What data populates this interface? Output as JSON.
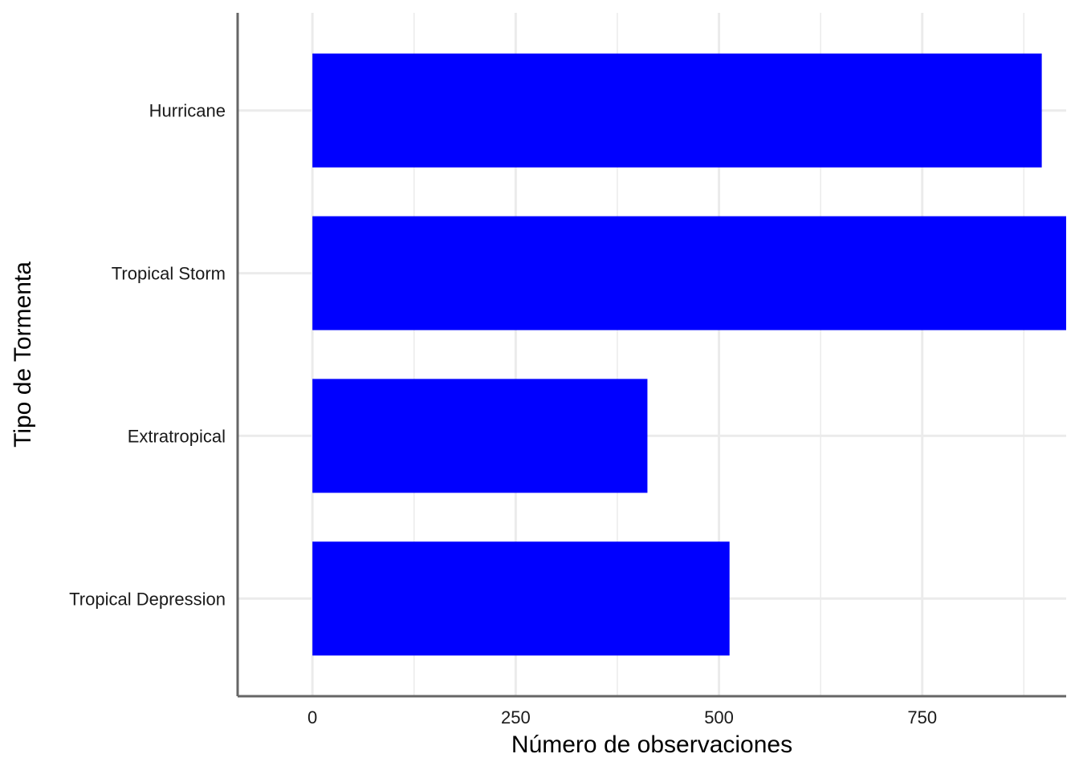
{
  "chart_data": {
    "type": "bar",
    "orientation": "horizontal",
    "title": "",
    "xlabel": "Número de observaciones",
    "ylabel": "Tipo de Tormenta",
    "categories": [
      "Hurricane",
      "Tropical Storm",
      "Extratropical",
      "Tropical Depression"
    ],
    "values": [
      897,
      927,
      412,
      513
    ],
    "xlim": [
      -92,
      927
    ],
    "x_ticks": [
      0,
      250,
      500,
      750
    ],
    "x_tick_labels": [
      "0",
      "250",
      "500",
      "750"
    ],
    "grid": true,
    "legend": "none",
    "bar_color": "#0000ff",
    "grid_color": "#ebebeb",
    "axis_color": "#666666"
  }
}
